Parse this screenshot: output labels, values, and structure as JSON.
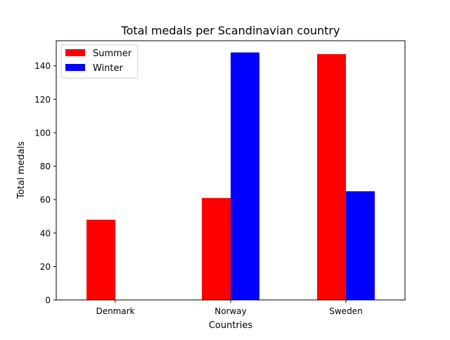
{
  "chart_data": {
    "type": "bar",
    "title": "Total medals per Scandinavian country",
    "xlabel": "Countries",
    "ylabel": "Total medals",
    "categories": [
      "Denmark",
      "Norway",
      "Sweden"
    ],
    "series": [
      {
        "name": "Summer",
        "values": [
          48,
          61,
          147
        ],
        "color": "#ff0000"
      },
      {
        "name": "Winter",
        "values": [
          0,
          148,
          65
        ],
        "color": "#0000ff"
      }
    ],
    "ylim": [
      0,
      155
    ],
    "yticks": [
      0,
      20,
      40,
      60,
      80,
      100,
      120,
      140
    ],
    "grid": false,
    "legend_position": "top-left"
  }
}
